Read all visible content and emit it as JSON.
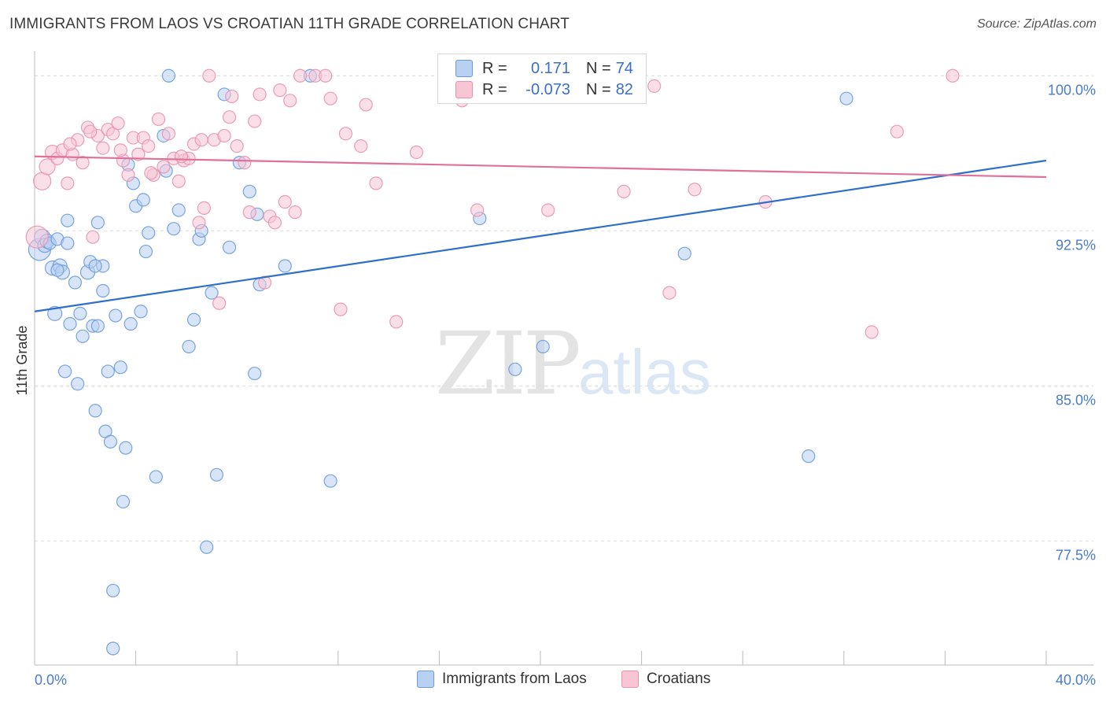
{
  "header": {
    "title": "IMMIGRANTS FROM LAOS VS CROATIAN 11TH GRADE CORRELATION CHART",
    "source": "Source: ZipAtlas.com"
  },
  "watermark": {
    "zip": "ZIP",
    "atlas": "atlas"
  },
  "legend": {
    "series1": {
      "r_label": "R =",
      "r_value": "0.171",
      "n_label": "N =",
      "n_value": "74"
    },
    "series2": {
      "r_label": "R =",
      "r_value": "-0.073",
      "n_label": "N =",
      "n_value": "82"
    }
  },
  "bottom_legend": {
    "series1": "Immigrants from Laos",
    "series2": "Croatians"
  },
  "colors": {
    "blue_fill": "#b8d0f2",
    "blue_stroke": "#6a9bd8",
    "blue_line": "#2e6fcc",
    "pink_fill": "#f8c5d5",
    "pink_stroke": "#e892b0",
    "pink_line": "#e0709a",
    "grid": "#dddddd",
    "tick_text": "#4a7cc9"
  },
  "chart_data": {
    "type": "scatter",
    "title": "IMMIGRANTS FROM LAOS VS CROATIAN 11TH GRADE CORRELATION CHART",
    "xlabel": "",
    "ylabel": "11th Grade",
    "xlim": [
      0,
      40
    ],
    "ylim": [
      71.5,
      101
    ],
    "x_tick_labels": [
      "0.0%",
      "40.0%"
    ],
    "y_ticks": [
      77.5,
      85.0,
      92.5,
      100.0
    ],
    "y_tick_labels": [
      "77.5%",
      "85.0%",
      "92.5%",
      "100.0%"
    ],
    "series": [
      {
        "name": "Immigrants from Laos",
        "r": 0.171,
        "n": 74,
        "trend": {
          "x": [
            0,
            40
          ],
          "y": [
            88.6,
            95.9
          ]
        },
        "points": [
          [
            0.2,
            91.6,
            14
          ],
          [
            0.3,
            92.2,
            10
          ],
          [
            0.4,
            91.8,
            9
          ],
          [
            0.5,
            92.0,
            9
          ],
          [
            0.6,
            91.9,
            8
          ],
          [
            0.7,
            90.7,
            9
          ],
          [
            0.8,
            88.5,
            9
          ],
          [
            0.9,
            92.1,
            8
          ],
          [
            1.0,
            90.8,
            9
          ],
          [
            1.1,
            90.5,
            9
          ],
          [
            1.2,
            85.7,
            8
          ],
          [
            1.3,
            91.9,
            8
          ],
          [
            1.4,
            88.0,
            8
          ],
          [
            1.6,
            90.0,
            8
          ],
          [
            1.7,
            85.1,
            8
          ],
          [
            1.8,
            88.5,
            8
          ],
          [
            1.9,
            87.4,
            8
          ],
          [
            2.1,
            90.5,
            9
          ],
          [
            2.2,
            91.0,
            8
          ],
          [
            2.3,
            87.9,
            8
          ],
          [
            2.4,
            83.8,
            8
          ],
          [
            2.5,
            87.9,
            8
          ],
          [
            2.7,
            90.8,
            8
          ],
          [
            2.8,
            82.8,
            8
          ],
          [
            2.9,
            85.7,
            8
          ],
          [
            3.0,
            82.3,
            8
          ],
          [
            3.1,
            75.1,
            8
          ],
          [
            3.2,
            88.4,
            8
          ],
          [
            3.4,
            85.9,
            8
          ],
          [
            3.5,
            79.4,
            8
          ],
          [
            3.6,
            82.0,
            8
          ],
          [
            3.8,
            88.0,
            8
          ],
          [
            3.9,
            94.8,
            8
          ],
          [
            4.0,
            93.7,
            8
          ],
          [
            4.2,
            88.6,
            8
          ],
          [
            4.4,
            91.5,
            8
          ],
          [
            4.5,
            92.4,
            8
          ],
          [
            4.8,
            80.6,
            8
          ],
          [
            5.1,
            97.1,
            8
          ],
          [
            5.2,
            95.4,
            8
          ],
          [
            5.7,
            93.5,
            8
          ],
          [
            6.1,
            86.9,
            8
          ],
          [
            6.3,
            88.2,
            8
          ],
          [
            6.5,
            92.1,
            8
          ],
          [
            6.8,
            77.2,
            8
          ],
          [
            7.0,
            89.5,
            8
          ],
          [
            7.2,
            80.7,
            8
          ],
          [
            7.5,
            99.1,
            8
          ],
          [
            7.7,
            91.7,
            8
          ],
          [
            8.1,
            95.8,
            8
          ],
          [
            8.5,
            94.4,
            8
          ],
          [
            8.7,
            85.6,
            8
          ],
          [
            8.8,
            93.3,
            8
          ],
          [
            8.9,
            89.9,
            8
          ],
          [
            9.9,
            90.8,
            8
          ],
          [
            10.9,
            100.0,
            8
          ],
          [
            11.7,
            80.4,
            8
          ],
          [
            17.6,
            93.1,
            8
          ],
          [
            20.1,
            86.9,
            8
          ],
          [
            19.0,
            85.8,
            8
          ],
          [
            25.7,
            91.4,
            8
          ],
          [
            30.6,
            81.6,
            8
          ],
          [
            32.1,
            98.9,
            8
          ],
          [
            5.3,
            100.0,
            8
          ],
          [
            3.1,
            72.3,
            8
          ],
          [
            2.5,
            92.9,
            8
          ],
          [
            1.3,
            93.0,
            8
          ],
          [
            4.3,
            94.0,
            8
          ],
          [
            5.5,
            92.6,
            8
          ],
          [
            0.9,
            90.6,
            8
          ],
          [
            2.7,
            89.6,
            8
          ],
          [
            3.7,
            95.7,
            8
          ],
          [
            2.4,
            90.8,
            8
          ],
          [
            6.6,
            92.5,
            8
          ]
        ]
      },
      {
        "name": "Croatians",
        "r": -0.073,
        "n": 82,
        "trend": {
          "x": [
            0,
            40
          ],
          "y": [
            96.1,
            95.1
          ]
        },
        "points": [
          [
            0.1,
            92.2,
            14
          ],
          [
            0.3,
            94.9,
            11
          ],
          [
            0.5,
            95.6,
            10
          ],
          [
            0.7,
            96.3,
            9
          ],
          [
            0.9,
            96.0,
            8
          ],
          [
            1.1,
            96.4,
            8
          ],
          [
            1.3,
            94.8,
            8
          ],
          [
            1.5,
            96.2,
            8
          ],
          [
            1.7,
            96.9,
            8
          ],
          [
            1.9,
            95.8,
            8
          ],
          [
            2.1,
            97.5,
            8
          ],
          [
            2.3,
            92.2,
            8
          ],
          [
            2.5,
            97.1,
            8
          ],
          [
            2.7,
            96.5,
            8
          ],
          [
            2.9,
            97.4,
            8
          ],
          [
            3.1,
            97.2,
            8
          ],
          [
            3.3,
            97.7,
            8
          ],
          [
            3.5,
            95.9,
            8
          ],
          [
            3.7,
            95.2,
            8
          ],
          [
            3.9,
            97.0,
            8
          ],
          [
            4.1,
            96.2,
            8
          ],
          [
            4.3,
            97.0,
            8
          ],
          [
            4.5,
            96.6,
            8
          ],
          [
            4.7,
            95.2,
            8
          ],
          [
            4.9,
            97.9,
            8
          ],
          [
            5.1,
            95.6,
            8
          ],
          [
            5.3,
            97.2,
            8
          ],
          [
            5.5,
            96.0,
            8
          ],
          [
            5.7,
            94.9,
            8
          ],
          [
            5.9,
            95.9,
            8
          ],
          [
            6.1,
            96.0,
            8
          ],
          [
            6.3,
            96.7,
            8
          ],
          [
            6.5,
            92.9,
            8
          ],
          [
            6.7,
            93.6,
            8
          ],
          [
            6.9,
            100.0,
            8
          ],
          [
            7.1,
            96.9,
            8
          ],
          [
            7.3,
            89.0,
            8
          ],
          [
            7.5,
            97.1,
            8
          ],
          [
            7.7,
            98.0,
            8
          ],
          [
            7.8,
            99.0,
            8
          ],
          [
            8.0,
            96.6,
            8
          ],
          [
            8.3,
            95.8,
            8
          ],
          [
            8.5,
            93.4,
            8
          ],
          [
            8.7,
            97.8,
            8
          ],
          [
            8.9,
            99.1,
            8
          ],
          [
            9.1,
            90.0,
            8
          ],
          [
            9.3,
            93.2,
            8
          ],
          [
            9.5,
            92.9,
            8
          ],
          [
            9.7,
            99.3,
            8
          ],
          [
            9.9,
            93.9,
            8
          ],
          [
            10.1,
            98.8,
            8
          ],
          [
            10.3,
            93.4,
            8
          ],
          [
            10.5,
            100.0,
            8
          ],
          [
            11.1,
            100.0,
            8
          ],
          [
            11.5,
            100.0,
            8
          ],
          [
            11.7,
            98.9,
            8
          ],
          [
            12.1,
            88.7,
            8
          ],
          [
            12.3,
            97.2,
            8
          ],
          [
            12.9,
            96.6,
            8
          ],
          [
            13.1,
            98.6,
            8
          ],
          [
            13.5,
            94.8,
            8
          ],
          [
            14.3,
            88.1,
            8
          ],
          [
            15.1,
            96.3,
            8
          ],
          [
            16.9,
            98.8,
            8
          ],
          [
            17.5,
            93.5,
            8
          ],
          [
            18.1,
            99.2,
            8
          ],
          [
            20.3,
            93.5,
            8
          ],
          [
            22.9,
            100.0,
            8
          ],
          [
            23.3,
            94.4,
            8
          ],
          [
            24.5,
            99.5,
            8
          ],
          [
            25.1,
            89.5,
            8
          ],
          [
            26.1,
            94.5,
            8
          ],
          [
            28.9,
            93.9,
            8
          ],
          [
            33.1,
            87.6,
            8
          ],
          [
            34.1,
            97.3,
            8
          ],
          [
            36.3,
            100.0,
            8
          ],
          [
            5.8,
            96.1,
            8
          ],
          [
            3.4,
            96.4,
            8
          ],
          [
            6.6,
            96.9,
            8
          ],
          [
            2.2,
            97.3,
            8
          ],
          [
            4.6,
            95.3,
            8
          ],
          [
            1.4,
            96.7,
            8
          ]
        ]
      }
    ]
  }
}
